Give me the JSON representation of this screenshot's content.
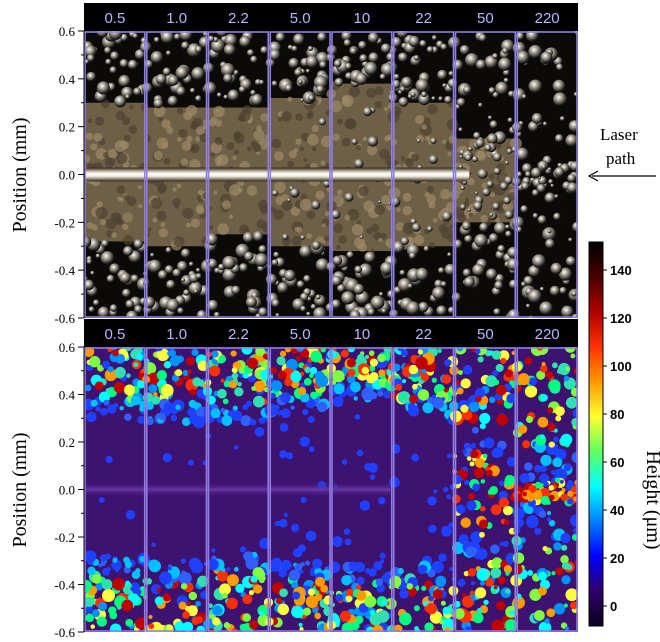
{
  "panels": [
    {
      "id": "micrograph",
      "columns": [
        "0.5",
        "1.0",
        "2.2",
        "5.0",
        "10",
        "22",
        "50",
        "220"
      ],
      "ylabel": "Position (mm)",
      "yticks": [
        "0.6",
        "0.4",
        "0.2",
        "0.0",
        "-0.2",
        "-0.4",
        "-0.6"
      ]
    },
    {
      "id": "height-map",
      "columns": [
        "0.5",
        "1.0",
        "2.2",
        "5.0",
        "10",
        "22",
        "50",
        "220"
      ],
      "ylabel": "Position (mm)",
      "yticks": [
        "0.6",
        "0.4",
        "0.2",
        "0.0",
        "-0.2",
        "-0.4",
        "-0.6"
      ]
    }
  ],
  "annotation": {
    "line1": "Laser",
    "line2": "path"
  },
  "colorbar": {
    "label": "Height (μm)",
    "ticks": [
      "140",
      "120",
      "100",
      "80",
      "60",
      "40",
      "20",
      "0"
    ],
    "stops": [
      "#000000",
      "#4a0000",
      "#b00000",
      "#ff3000",
      "#ff9a00",
      "#ffff30",
      "#60ff60",
      "#00ffff",
      "#0080ff",
      "#0000ff",
      "#30006a",
      "#0a0020"
    ]
  },
  "colors": {
    "frame": "#8f7fe0",
    "header_bg": "#000000",
    "header_text": "#b9b6ff",
    "height_background": "#3d1270"
  }
}
